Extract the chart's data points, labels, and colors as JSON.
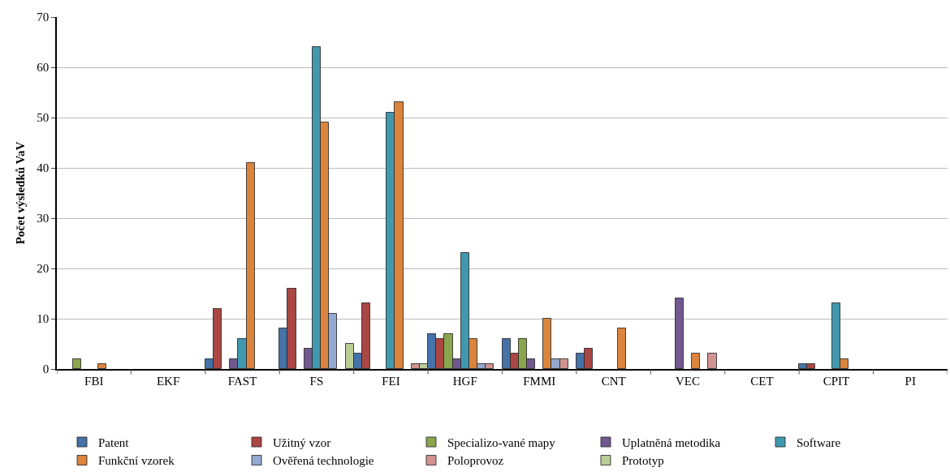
{
  "chart_data": {
    "type": "bar",
    "ylabel": "Počet výsledků VaV",
    "categories": [
      "FBI",
      "EKF",
      "FAST",
      "FS",
      "FEI",
      "HGF",
      "FMMI",
      "CNT",
      "VEC",
      "CET",
      "CPIT",
      "PI"
    ],
    "series": [
      {
        "name": "Patent",
        "color": "#4572a7",
        "values": [
          null,
          null,
          2,
          8,
          3,
          7,
          6,
          3,
          null,
          null,
          1,
          null
        ]
      },
      {
        "name": "Užitný vzor",
        "color": "#aa4643",
        "values": [
          null,
          null,
          12,
          16,
          13,
          6,
          3,
          4,
          null,
          null,
          1,
          null
        ]
      },
      {
        "name": "Specializo-vané mapy",
        "color": "#89a54e",
        "values": [
          2,
          null,
          null,
          null,
          null,
          7,
          6,
          null,
          null,
          null,
          null,
          null
        ]
      },
      {
        "name": "Uplatněná metodika",
        "color": "#71588f",
        "values": [
          null,
          null,
          2,
          4,
          null,
          2,
          2,
          null,
          14,
          null,
          null,
          null
        ]
      },
      {
        "name": "Software",
        "color": "#4198af",
        "values": [
          null,
          null,
          6,
          64,
          51,
          23,
          null,
          null,
          null,
          null,
          13,
          null
        ]
      },
      {
        "name": "Funkční vzorek",
        "color": "#db843d",
        "values": [
          1,
          null,
          41,
          49,
          53,
          6,
          10,
          8,
          3,
          null,
          2,
          null
        ]
      },
      {
        "name": "Ověřená technologie",
        "color": "#93a9cf",
        "values": [
          null,
          null,
          null,
          11,
          null,
          1,
          2,
          null,
          null,
          null,
          null,
          null
        ]
      },
      {
        "name": "Poloprovoz",
        "color": "#d19392",
        "values": [
          null,
          null,
          null,
          null,
          1,
          1,
          2,
          null,
          3,
          null,
          null,
          null
        ]
      },
      {
        "name": "Prototyp",
        "color": "#b9cd96",
        "values": [
          null,
          null,
          null,
          5,
          1,
          null,
          null,
          null,
          null,
          null,
          null,
          null
        ]
      }
    ],
    "ylim": [
      0,
      70
    ],
    "yticks": [
      0,
      10,
      20,
      30,
      40,
      50,
      60,
      70
    ],
    "grid": "y",
    "legend": "bottom"
  }
}
